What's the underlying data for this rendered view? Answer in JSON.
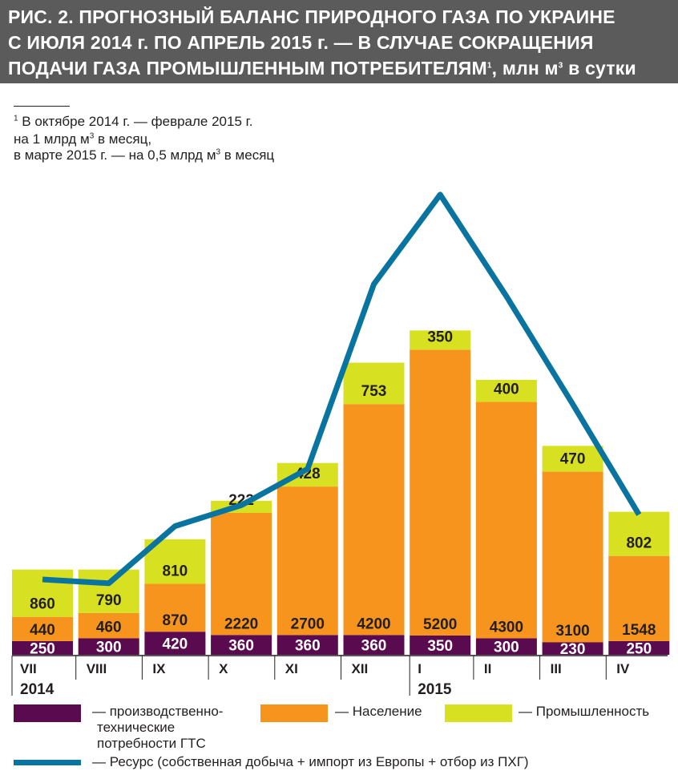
{
  "title_lines": [
    "РИС. 2. ПРОГНОЗНЫЙ БАЛАНС ПРИРОДНОГО ГАЗА ПО УКРАИНЕ",
    "С ИЮЛЯ 2014 г. ПО АПРЕЛЬ 2015 г. — В СЛУЧАЕ СОКРАЩЕНИЯ",
    "ПОДАЧИ ГАЗА  ПРОМЫШЛЕННЫМ ПОТРЕБИТЕЛЯМ",
    ", млн м",
    " в сутки"
  ],
  "footnote": {
    "mark": "1",
    "line1": " В октябре 2014 г. — феврале 2015 г.",
    "line2a": " на 1 млрд м",
    "line2b": " в месяц,",
    "line3a": "в марте 2015 г. — на 0,5 млрд м",
    "line3b": " в месяц",
    "cube": "3"
  },
  "colors": {
    "gts": "#5a0a4f",
    "population": "#f7941d",
    "industry": "#d7e021",
    "resource": "#0a74a0",
    "title_band": "#5b5b5b"
  },
  "chart_data": {
    "type": "bar",
    "stacked": true,
    "categories": [
      "VII",
      "VIII",
      "IX",
      "X",
      "XI",
      "XII",
      "I",
      "II",
      "III",
      "IV"
    ],
    "year_labels": [
      {
        "index": 0,
        "label": "2014"
      },
      {
        "index": 6,
        "label": "2015"
      }
    ],
    "series": [
      {
        "name": "— производственно-технические потребности ГТС",
        "values": [
          250,
          300,
          420,
          360,
          360,
          360,
          350,
          300,
          230,
          250
        ]
      },
      {
        "name": "— Население",
        "values": [
          440,
          460,
          870,
          2220,
          2700,
          4200,
          5200,
          4300,
          3100,
          1548
        ]
      },
      {
        "name": "— Промышленность",
        "values": [
          860,
          790,
          810,
          222,
          428,
          753,
          350,
          400,
          470,
          802
        ]
      }
    ],
    "line_series": {
      "name": "— Ресурс (собственная добыча + импорт из Европы + отбор из ПХГ)",
      "values": [
        1370,
        1300,
        2340,
        2720,
        3380,
        6740,
        8370,
        6520,
        4560,
        2550
      ]
    },
    "ylim": [
      0,
      8500
    ]
  },
  "legend": {
    "gts_line1": "— производственно-",
    "gts_line2": "технические",
    "gts_line3": "потребности ГТС",
    "population": "— Население",
    "industry": "— Промышленность",
    "resource": "— Ресурс (собственная добыча + импорт из Европы + отбор из ПХГ)"
  }
}
